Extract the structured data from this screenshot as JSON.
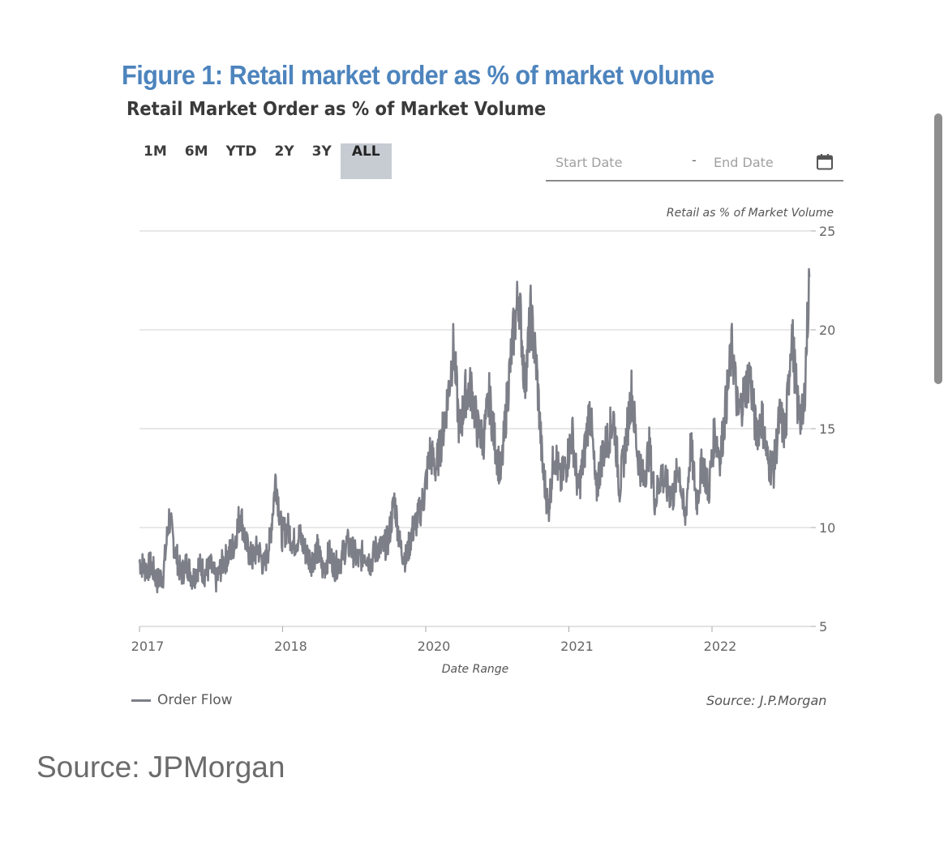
{
  "figure_title": "Figure 1: Retail market order as % of market volume",
  "range_buttons": [
    {
      "label": "1M",
      "active": false
    },
    {
      "label": "6M",
      "active": false
    },
    {
      "label": "YTD",
      "active": false
    },
    {
      "label": "2Y",
      "active": false
    },
    {
      "label": "3Y",
      "active": false
    },
    {
      "label": "ALL",
      "active": true
    }
  ],
  "date_range": {
    "start_placeholder": "Start Date",
    "separator": "-",
    "end_placeholder": "End Date",
    "icon": "calendar-icon"
  },
  "footer_source": "Source: JPMorgan",
  "chart_data": {
    "type": "line",
    "title": "Retail Market Order as % of Market Volume",
    "xlabel": "Date Range",
    "ylabel": "Retail as % of Market Volume",
    "ylim": [
      5,
      25
    ],
    "y_ticks": [
      5,
      10,
      15,
      20,
      25
    ],
    "x_tick_labels": [
      "2017",
      "2018",
      "2020",
      "2021",
      "2022"
    ],
    "grid": true,
    "legend_placement": "bottom-left",
    "source_note": "Source: J.P.Morgan",
    "series": [
      {
        "name": "Order Flow",
        "color": "#7d7f88",
        "x": [
          0.0,
          0.04,
          0.08,
          0.12,
          0.16,
          0.2,
          0.24,
          0.28,
          0.32,
          0.36,
          0.4,
          0.44,
          0.48,
          0.52,
          0.56,
          0.6,
          0.64,
          0.68,
          0.72,
          0.76,
          0.8,
          0.84,
          0.88,
          0.92,
          0.96,
          1.0,
          1.04,
          1.08,
          1.12,
          1.16,
          1.2,
          1.24,
          1.28,
          1.32,
          1.36,
          1.4,
          1.44,
          1.48,
          1.52,
          1.56,
          1.6,
          1.64,
          1.68,
          1.72,
          1.76,
          1.8,
          1.84,
          1.88,
          1.92,
          1.96,
          2.0,
          2.04,
          2.08,
          2.12,
          2.16,
          2.2,
          2.24,
          2.28,
          2.32,
          2.36,
          2.4,
          2.44,
          2.48,
          2.52,
          2.56,
          2.6,
          2.64,
          2.68,
          2.72,
          2.76,
          2.8,
          2.84,
          2.88,
          2.92,
          2.96,
          3.0,
          3.04,
          3.08,
          3.12,
          3.16,
          3.2,
          3.24,
          3.28,
          3.32,
          3.36,
          3.4,
          3.44,
          3.48,
          3.52,
          3.56,
          3.6,
          3.64,
          3.68,
          3.72,
          3.76,
          3.8,
          3.84,
          3.88,
          3.92,
          3.96,
          4.0,
          4.04,
          4.08,
          4.12,
          4.16,
          4.2,
          4.24,
          4.28,
          4.32,
          4.36,
          4.4,
          4.44,
          4.48,
          4.52
        ],
        "values": [
          8.3,
          7.9,
          8.1,
          7.3,
          7.6,
          10.5,
          8.9,
          7.6,
          8.2,
          7.4,
          8.1,
          7.7,
          8.0,
          7.3,
          8.2,
          8.6,
          9.2,
          10.8,
          9.1,
          8.4,
          9.0,
          8.0,
          9.3,
          12.6,
          9.6,
          10.0,
          9.2,
          9.6,
          8.8,
          8.3,
          8.9,
          7.8,
          8.7,
          8.0,
          8.4,
          9.2,
          8.8,
          8.3,
          8.8,
          8.2,
          9.0,
          8.9,
          9.4,
          11.4,
          9.0,
          8.4,
          9.8,
          10.5,
          11.6,
          13.8,
          13.0,
          14.5,
          16.6,
          19.2,
          14.7,
          16.8,
          17.0,
          15.0,
          14.4,
          16.6,
          14.2,
          12.6,
          16.5,
          19.6,
          21.9,
          17.2,
          20.8,
          18.0,
          13.0,
          10.9,
          14.0,
          12.3,
          13.2,
          14.8,
          11.8,
          13.6,
          16.2,
          11.7,
          13.6,
          14.5,
          15.6,
          12.0,
          14.2,
          16.9,
          13.8,
          12.4,
          14.0,
          11.3,
          12.8,
          12.0,
          11.6,
          13.2,
          10.2,
          14.2,
          11.3,
          13.4,
          11.8,
          14.8,
          13.6,
          16.4,
          19.2,
          15.6,
          16.8,
          17.8,
          14.8,
          15.6,
          13.3,
          13.0,
          15.6,
          14.7,
          20.1,
          16.2,
          15.4,
          22.7
        ]
      }
    ]
  }
}
